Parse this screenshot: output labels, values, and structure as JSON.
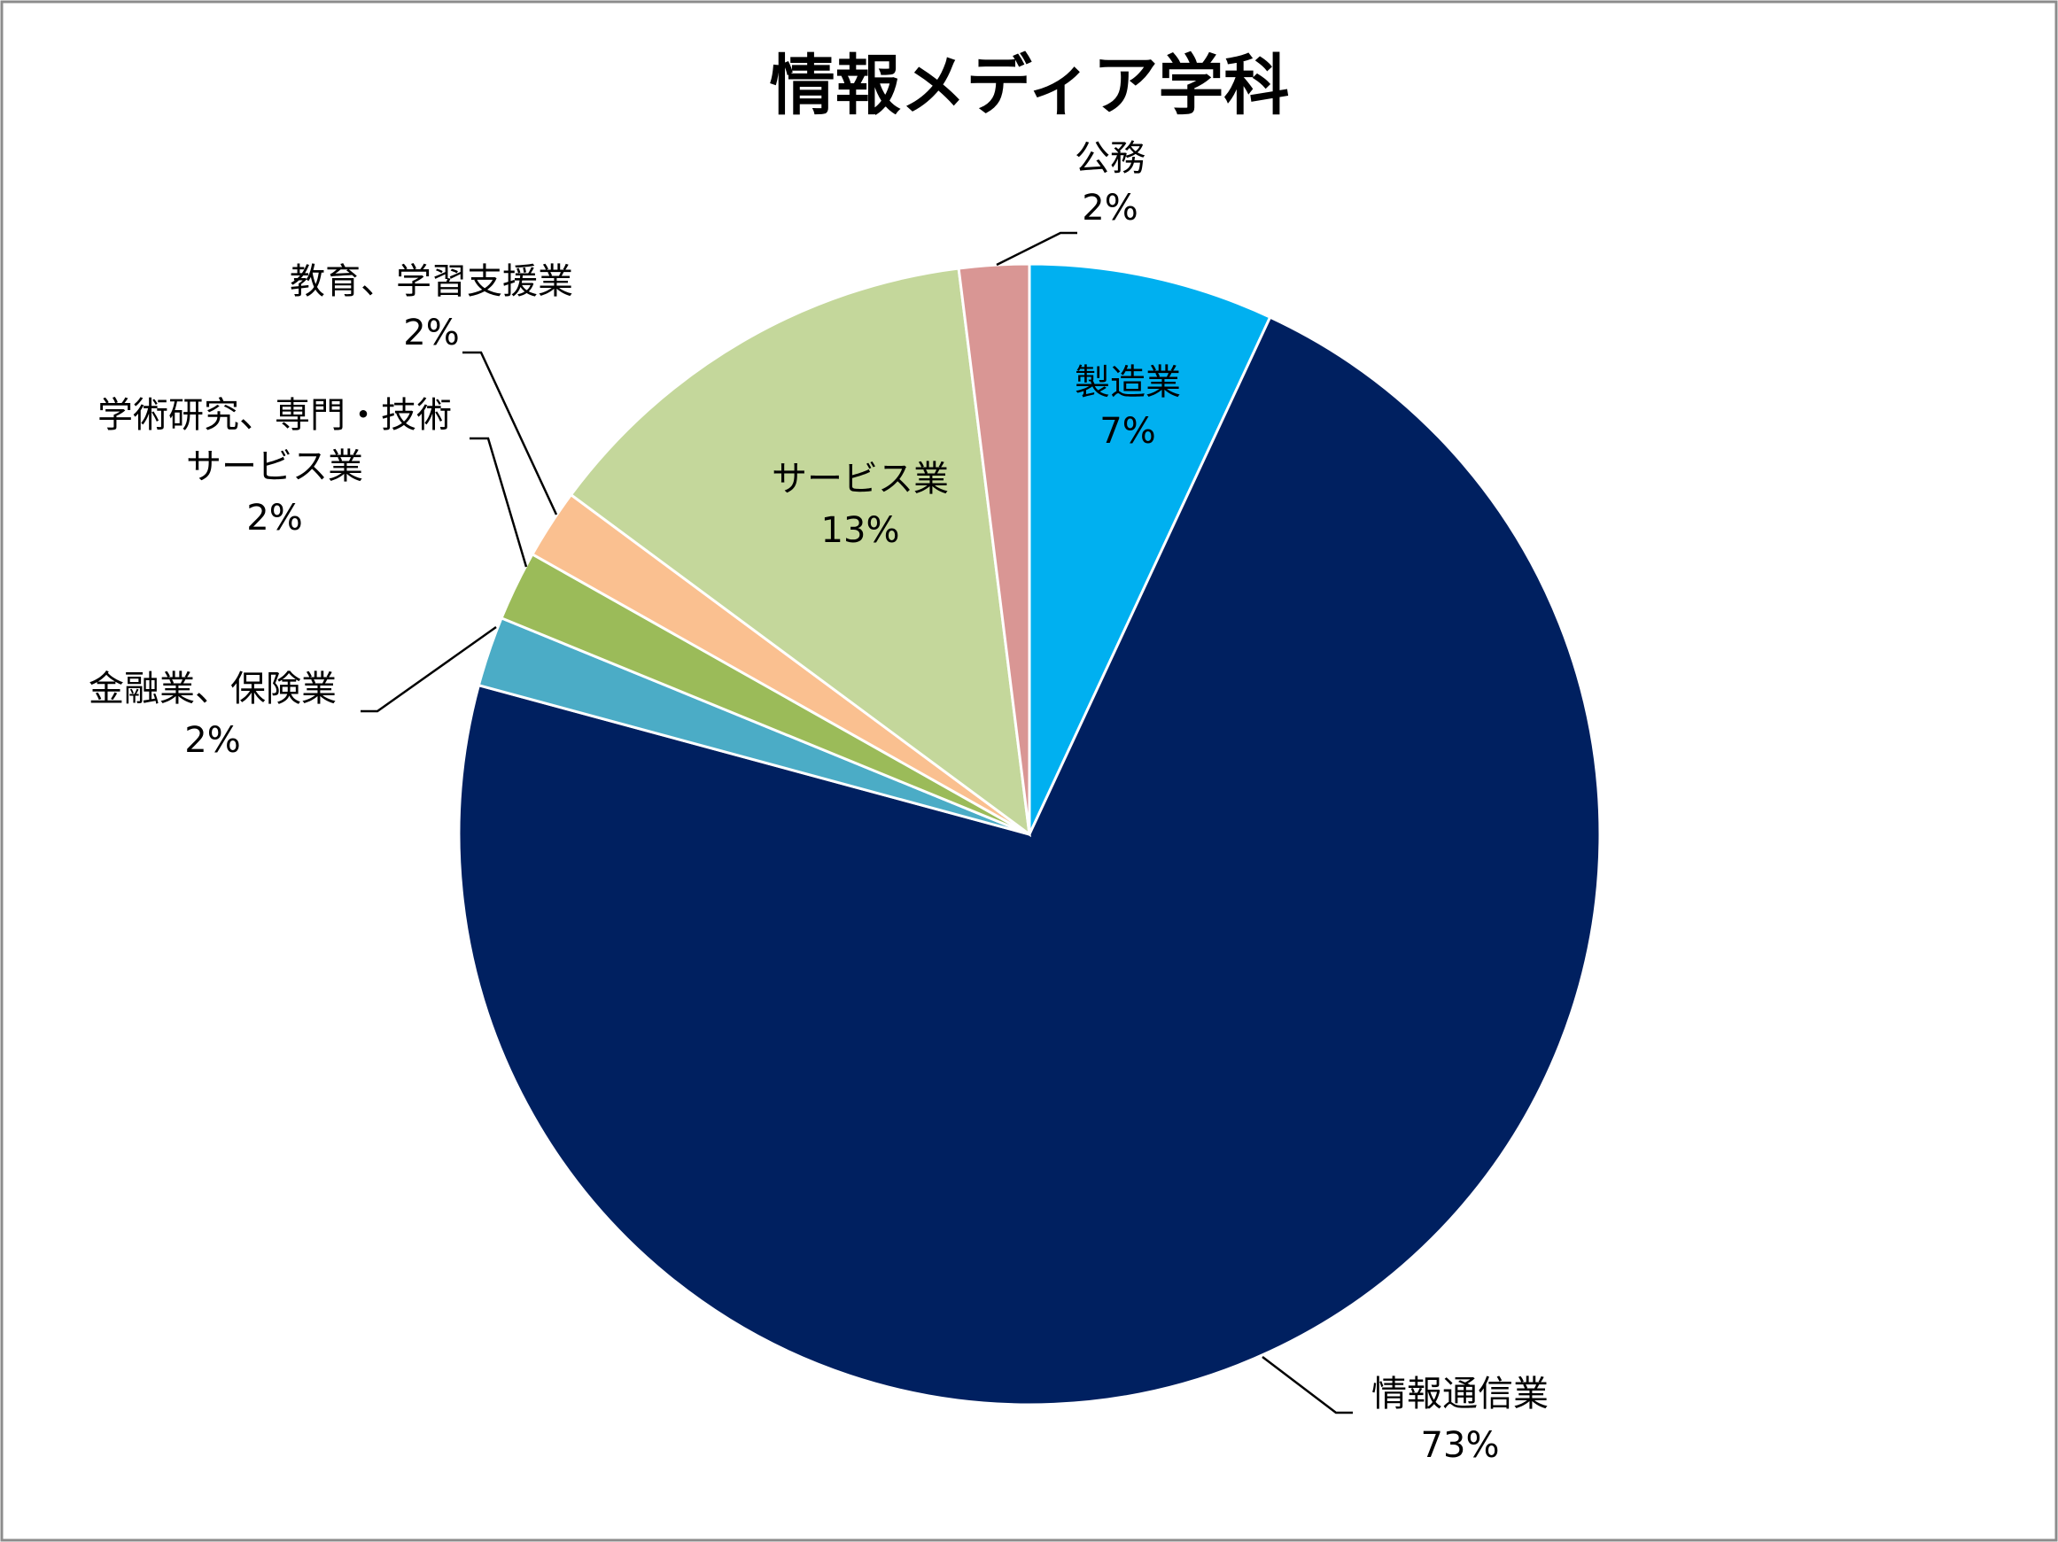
{
  "chart_data": {
    "type": "pie",
    "title": "情報メディア学科",
    "slices": [
      {
        "label": "製造業",
        "value": 7,
        "value_text": "7%",
        "color": "#00B0F0"
      },
      {
        "label": "情報通信業",
        "value": 73,
        "value_text": "73%",
        "color": "#002060"
      },
      {
        "label": "金融業、保険業",
        "value": 2,
        "value_text": "2%",
        "color": "#4BACC6"
      },
      {
        "label": "学術研究、専門・技術サービス業",
        "label_lines": [
          "学術研究、専門・技術",
          "サービス業"
        ],
        "value": 2,
        "value_text": "2%",
        "color": "#9BBB59"
      },
      {
        "label": "教育、学習支援業",
        "value": 2,
        "value_text": "2%",
        "color": "#FAC090"
      },
      {
        "label": "サービス業",
        "value": 13,
        "value_text": "13%",
        "color": "#C4D79B"
      },
      {
        "label": "公務",
        "value": 2,
        "value_text": "2%",
        "color": "#D99694"
      }
    ],
    "legend": "none"
  }
}
